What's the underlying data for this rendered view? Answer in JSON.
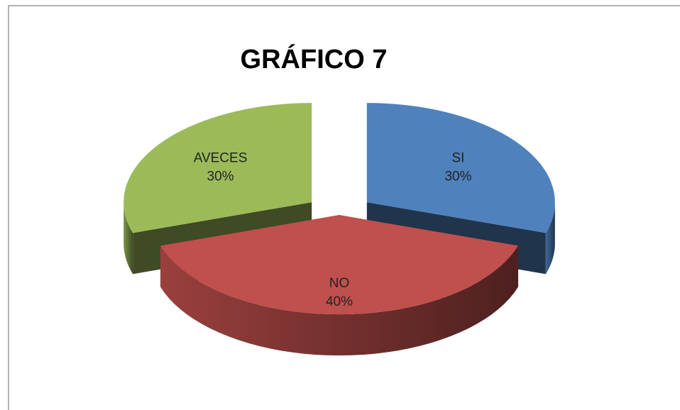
{
  "chart_data": {
    "type": "pie",
    "title": "GRÁFICO 7",
    "categories": [
      "SI",
      "NO",
      "AVECES"
    ],
    "values": [
      30,
      40,
      30
    ],
    "value_labels": [
      "30%",
      "40%",
      "30%"
    ],
    "colors": [
      "#4f81bd",
      "#c0504d",
      "#9bbb59"
    ]
  }
}
